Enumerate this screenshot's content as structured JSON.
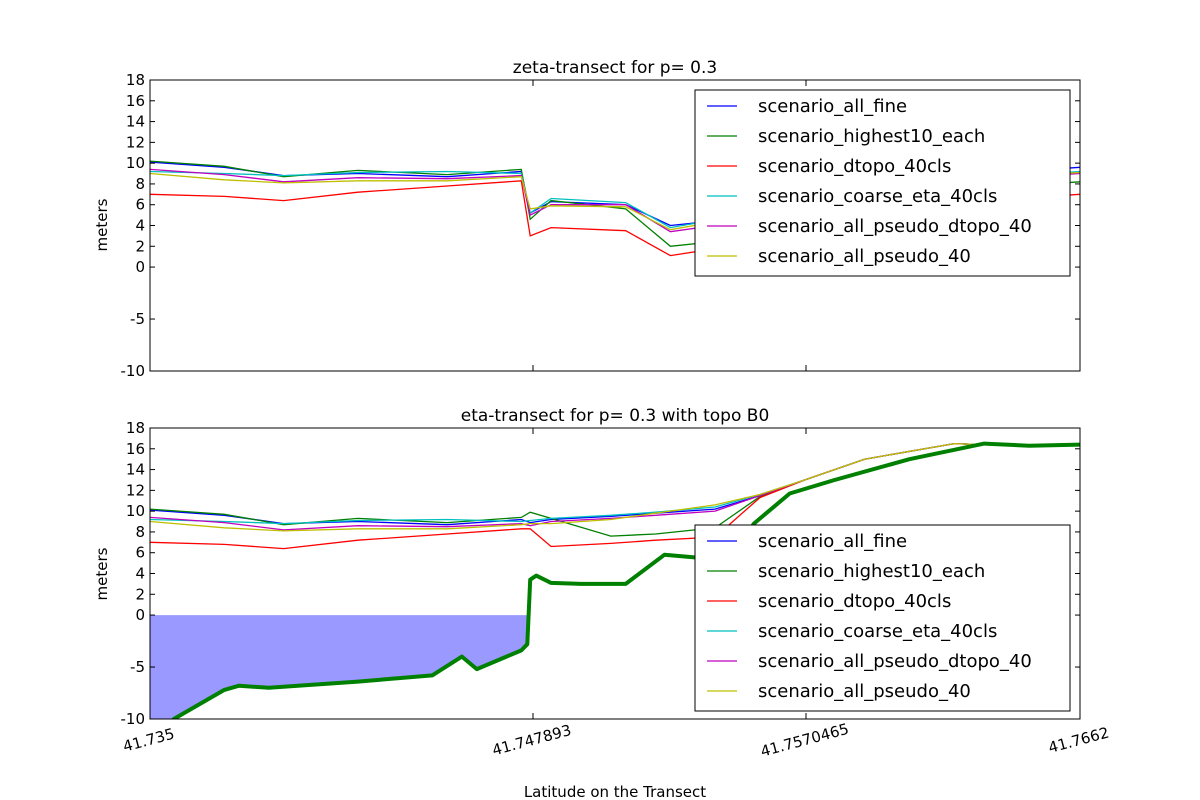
{
  "figure": {
    "xlabel": "Latitude on the Transect",
    "xtick_labels": [
      "41.735",
      "41.747893",
      "41.7570465",
      "41.7662"
    ]
  },
  "chart_data": [
    {
      "type": "line",
      "title": "zeta-transect for p= 0.3",
      "xlabel": "",
      "ylabel": "meters",
      "xlim": [
        41.735,
        41.7662
      ],
      "ylim": [
        -10,
        18
      ],
      "yticks": [
        -10,
        -5,
        0,
        2,
        4,
        6,
        8,
        10,
        12,
        14,
        16,
        18
      ],
      "grid": false,
      "legend_position": "upper-right",
      "x": [
        41.735,
        41.7375,
        41.7395,
        41.742,
        41.745,
        41.7475,
        41.7478,
        41.7485,
        41.751,
        41.7525,
        41.7545,
        41.756,
        41.758,
        41.761,
        41.7662
      ],
      "series": [
        {
          "name": "scenario_all_fine",
          "color": "#0000ff",
          "values": [
            10.1,
            9.6,
            8.8,
            9.0,
            8.7,
            9.2,
            5.2,
            6.3,
            6.0,
            4.0,
            4.6,
            5.6,
            7.0,
            8.6,
            9.6
          ]
        },
        {
          "name": "scenario_highest10_each",
          "color": "#008000",
          "values": [
            10.2,
            9.7,
            8.7,
            9.3,
            8.9,
            9.4,
            4.6,
            6.4,
            5.6,
            2.0,
            2.6,
            3.8,
            5.2,
            7.2,
            8.2
          ]
        },
        {
          "name": "scenario_dtopo_40cls",
          "color": "#ff0000",
          "values": [
            7.0,
            6.8,
            6.4,
            7.2,
            7.8,
            8.3,
            3.0,
            3.8,
            3.5,
            1.1,
            2.0,
            3.0,
            4.5,
            6.0,
            7.0
          ]
        },
        {
          "name": "scenario_coarse_eta_40cls",
          "color": "#00bfbf",
          "values": [
            9.2,
            9.0,
            8.8,
            9.1,
            9.2,
            9.0,
            5.2,
            6.6,
            6.2,
            3.8,
            4.8,
            5.8,
            7.0,
            8.3,
            9.2
          ]
        },
        {
          "name": "scenario_all_pseudo_dtopo_40",
          "color": "#bf00bf",
          "values": [
            9.4,
            8.9,
            8.2,
            8.6,
            8.5,
            8.8,
            5.0,
            6.0,
            6.0,
            3.4,
            4.2,
            5.2,
            6.6,
            8.0,
            9.0
          ]
        },
        {
          "name": "scenario_all_pseudo_40",
          "color": "#bfbf00",
          "values": [
            9.0,
            8.4,
            8.1,
            8.3,
            8.3,
            8.7,
            5.6,
            5.9,
            5.8,
            3.6,
            4.6,
            5.6,
            6.8,
            8.2,
            9.1
          ]
        }
      ]
    },
    {
      "type": "line",
      "title": "eta-transect for p= 0.3 with topo B0",
      "xlabel": "Latitude on the Transect",
      "ylabel": "meters",
      "xlim": [
        41.735,
        41.7662
      ],
      "ylim": [
        -10,
        18
      ],
      "yticks": [
        -10,
        -5,
        0,
        2,
        4,
        6,
        8,
        10,
        12,
        14,
        16,
        18
      ],
      "grid": false,
      "legend_position": "lower-right",
      "x": [
        41.735,
        41.7375,
        41.7395,
        41.742,
        41.745,
        41.7475,
        41.7478,
        41.7485,
        41.7505,
        41.752,
        41.754,
        41.7555,
        41.757,
        41.759,
        41.762,
        41.764,
        41.7662
      ],
      "series": [
        {
          "name": "scenario_all_fine",
          "color": "#0000ff",
          "values": [
            10.1,
            9.6,
            8.8,
            9.0,
            8.7,
            9.2,
            8.9,
            9.2,
            9.5,
            9.8,
            10.2,
            11.5,
            13.0,
            15.0,
            16.5,
            16.3,
            16.4
          ]
        },
        {
          "name": "scenario_highest10_each",
          "color": "#008000",
          "values": [
            10.2,
            9.7,
            8.7,
            9.3,
            8.9,
            9.4,
            9.9,
            9.3,
            7.6,
            7.8,
            8.4,
            11.4,
            13.0,
            15.0,
            16.5,
            16.3,
            16.4
          ]
        },
        {
          "name": "scenario_dtopo_40cls",
          "color": "#ff0000",
          "values": [
            7.0,
            6.8,
            6.4,
            7.2,
            7.8,
            8.3,
            8.3,
            6.6,
            6.9,
            7.2,
            7.5,
            11.3,
            13.0,
            15.0,
            16.5,
            16.3,
            16.4
          ]
        },
        {
          "name": "scenario_coarse_eta_40cls",
          "color": "#00bfbf",
          "values": [
            9.2,
            9.0,
            8.8,
            9.1,
            9.2,
            9.0,
            9.1,
            9.3,
            9.6,
            9.9,
            10.4,
            11.6,
            13.0,
            15.0,
            16.5,
            16.3,
            16.4
          ]
        },
        {
          "name": "scenario_all_pseudo_dtopo_40",
          "color": "#bf00bf",
          "values": [
            9.4,
            8.9,
            8.2,
            8.6,
            8.5,
            8.8,
            8.6,
            9.0,
            9.3,
            9.6,
            10.0,
            11.5,
            13.0,
            15.0,
            16.5,
            16.3,
            16.4
          ]
        },
        {
          "name": "scenario_all_pseudo_40",
          "color": "#bfbf00",
          "values": [
            9.0,
            8.4,
            8.1,
            8.3,
            8.3,
            8.7,
            8.8,
            8.8,
            9.2,
            9.8,
            10.6,
            11.6,
            13.0,
            15.0,
            16.5,
            16.3,
            16.4
          ]
        }
      ],
      "topography": {
        "color": "#008000",
        "fill_color": "#9999ff",
        "fill_to": 0,
        "x": [
          41.735,
          41.7358,
          41.7375,
          41.738,
          41.739,
          41.742,
          41.7445,
          41.7455,
          41.746,
          41.7475,
          41.7477,
          41.7478,
          41.748,
          41.7485,
          41.7495,
          41.751,
          41.7523,
          41.7535,
          41.7545,
          41.7553,
          41.7565,
          41.758,
          41.7605,
          41.763,
          41.7645,
          41.7662
        ],
        "values": [
          -14.0,
          -10.0,
          -7.2,
          -6.8,
          -7.0,
          -6.4,
          -5.8,
          -4.0,
          -5.2,
          -3.4,
          -2.8,
          3.4,
          3.8,
          3.1,
          3.0,
          3.0,
          5.8,
          5.5,
          5.4,
          8.8,
          11.7,
          13.0,
          15.0,
          16.5,
          16.3,
          16.4
        ]
      }
    }
  ]
}
